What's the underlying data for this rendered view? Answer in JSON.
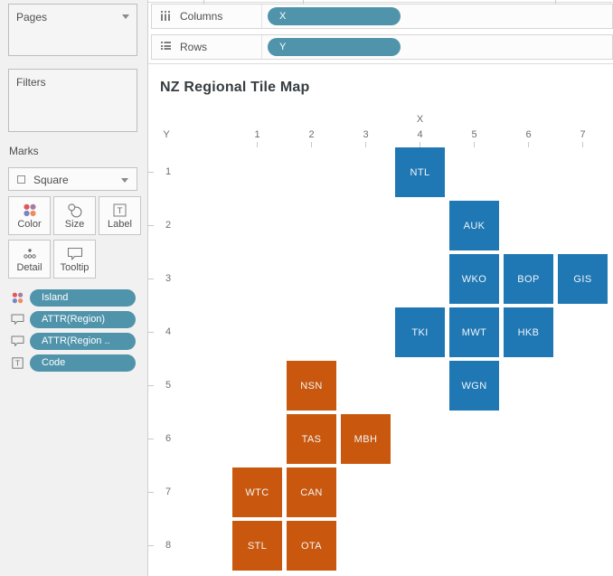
{
  "colors": {
    "pill": "#5094ab",
    "tile_blue": "#1f77b4",
    "tile_orange": "#c9580e",
    "color_icon_dots": [
      "#e15759",
      "#a87ba5",
      "#7b84c4",
      "#ef8d5f"
    ]
  },
  "shelves": {
    "columns": {
      "label": "Columns",
      "pill": "X"
    },
    "rows": {
      "label": "Rows",
      "pill": "Y"
    }
  },
  "sidebar": {
    "pages": {
      "title": "Pages"
    },
    "filters": {
      "title": "Filters"
    },
    "marks": {
      "title": "Marks",
      "mark_type": "Square",
      "buttons": [
        "Color",
        "Size",
        "Label",
        "Detail",
        "Tooltip"
      ],
      "pills": [
        {
          "icon": "color-dots-icon",
          "label": "Island"
        },
        {
          "icon": "tooltip-bubble-icon",
          "label": "ATTR(Region)"
        },
        {
          "icon": "tooltip-bubble-icon",
          "label": "ATTR(Region .."
        },
        {
          "icon": "text-label-icon",
          "label": "Code"
        }
      ]
    }
  },
  "chart_data": {
    "type": "heatmap",
    "title": "NZ Regional Tile Map",
    "xlabel": "X",
    "ylabel": "Y",
    "x_ticks": [
      "1",
      "2",
      "3",
      "4",
      "5",
      "6",
      "7"
    ],
    "y_ticks": [
      "1",
      "2",
      "3",
      "4",
      "5",
      "6",
      "7",
      "8"
    ],
    "legend_position": "none",
    "tiles": [
      {
        "code": "NTL",
        "x": 4,
        "y": 1,
        "color": "blue"
      },
      {
        "code": "AUK",
        "x": 5,
        "y": 2,
        "color": "blue"
      },
      {
        "code": "WKO",
        "x": 5,
        "y": 3,
        "color": "blue"
      },
      {
        "code": "BOP",
        "x": 6,
        "y": 3,
        "color": "blue"
      },
      {
        "code": "GIS",
        "x": 7,
        "y": 3,
        "color": "blue"
      },
      {
        "code": "TKI",
        "x": 4,
        "y": 4,
        "color": "blue"
      },
      {
        "code": "MWT",
        "x": 5,
        "y": 4,
        "color": "blue"
      },
      {
        "code": "HKB",
        "x": 6,
        "y": 4,
        "color": "blue"
      },
      {
        "code": "NSN",
        "x": 2,
        "y": 5,
        "color": "orange"
      },
      {
        "code": "WGN",
        "x": 5,
        "y": 5,
        "color": "blue"
      },
      {
        "code": "TAS",
        "x": 2,
        "y": 6,
        "color": "orange"
      },
      {
        "code": "MBH",
        "x": 3,
        "y": 6,
        "color": "orange"
      },
      {
        "code": "WTC",
        "x": 1,
        "y": 7,
        "color": "orange"
      },
      {
        "code": "CAN",
        "x": 2,
        "y": 7,
        "color": "orange"
      },
      {
        "code": "STL",
        "x": 1,
        "y": 8,
        "color": "orange"
      },
      {
        "code": "OTA",
        "x": 2,
        "y": 8,
        "color": "orange"
      }
    ]
  }
}
